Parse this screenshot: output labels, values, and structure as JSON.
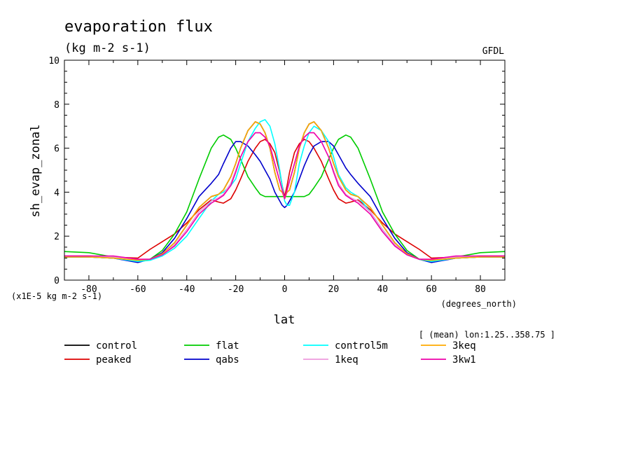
{
  "chart_data": {
    "type": "line",
    "title": "evaporation flux",
    "subtitle": "(kg m-2 s-1)",
    "source_label": "GFDL",
    "xlabel": "lat",
    "xunits": "(degrees_north)",
    "ylabel": "sh_evap_zonal",
    "yscale_note": "(x1E-5 kg m-2 s-1)",
    "averaging_note": "[ (mean) lon:1.25..358.75 ]",
    "xlim": [
      -90,
      90
    ],
    "ylim": [
      0,
      10
    ],
    "xticks": [
      -80,
      -60,
      -40,
      -20,
      0,
      20,
      40,
      60,
      80
    ],
    "yticks": [
      0,
      2,
      4,
      6,
      8,
      10
    ],
    "x": [
      -90,
      -80,
      -70,
      -60,
      -55,
      -50,
      -45,
      -40,
      -35,
      -30,
      -27,
      -25,
      -22,
      -20,
      -18,
      -15,
      -12,
      -10,
      -8,
      -6,
      -4,
      -2,
      -1,
      0,
      1,
      2,
      4,
      6,
      8,
      10,
      12,
      15,
      18,
      20,
      22,
      25,
      27,
      30,
      35,
      40,
      45,
      50,
      55,
      60,
      70,
      80,
      90
    ],
    "series": [
      {
        "name": "control",
        "color": "#000000",
        "values": [
          1.05,
          1.05,
          1.0,
          0.9,
          0.95,
          1.2,
          1.7,
          2.5,
          3.3,
          3.8,
          3.9,
          4.1,
          4.7,
          5.3,
          6.0,
          6.8,
          7.2,
          7.1,
          6.7,
          6.0,
          4.9,
          4.1,
          4.0,
          3.8,
          4.0,
          4.1,
          4.9,
          6.0,
          6.7,
          7.1,
          7.2,
          6.8,
          6.0,
          5.3,
          4.7,
          4.1,
          3.9,
          3.8,
          3.3,
          2.5,
          1.7,
          1.2,
          0.95,
          0.9,
          1.0,
          1.05,
          1.05
        ]
      },
      {
        "name": "peaked",
        "color": "#dd0000",
        "values": [
          1.1,
          1.1,
          1.05,
          1.0,
          1.4,
          1.75,
          2.1,
          2.6,
          3.2,
          3.65,
          3.55,
          3.5,
          3.7,
          4.1,
          4.6,
          5.4,
          6.0,
          6.3,
          6.4,
          6.2,
          5.8,
          4.9,
          4.3,
          3.8,
          4.3,
          4.9,
          5.8,
          6.2,
          6.4,
          6.3,
          6.0,
          5.4,
          4.6,
          4.1,
          3.7,
          3.5,
          3.55,
          3.65,
          3.2,
          2.6,
          2.1,
          1.75,
          1.4,
          1.0,
          1.05,
          1.1,
          1.1
        ]
      },
      {
        "name": "flat",
        "color": "#00cc00",
        "values": [
          1.3,
          1.25,
          1.05,
          0.85,
          0.95,
          1.35,
          2.1,
          3.1,
          4.6,
          6.0,
          6.5,
          6.6,
          6.4,
          6.0,
          5.5,
          4.7,
          4.2,
          3.9,
          3.8,
          3.8,
          3.8,
          3.8,
          3.8,
          3.8,
          3.8,
          3.8,
          3.8,
          3.8,
          3.8,
          3.9,
          4.2,
          4.7,
          5.5,
          6.0,
          6.4,
          6.6,
          6.5,
          6.0,
          4.6,
          3.1,
          2.1,
          1.35,
          0.95,
          0.85,
          1.05,
          1.25,
          1.3
        ]
      },
      {
        "name": "qabs",
        "color": "#0000cc",
        "values": [
          1.05,
          1.05,
          1.0,
          0.8,
          0.95,
          1.25,
          1.9,
          2.8,
          3.8,
          4.4,
          4.8,
          5.3,
          6.0,
          6.3,
          6.3,
          6.1,
          5.7,
          5.4,
          5.0,
          4.6,
          4.0,
          3.6,
          3.4,
          3.3,
          3.4,
          3.6,
          4.0,
          4.6,
          5.2,
          5.7,
          6.1,
          6.3,
          6.3,
          6.1,
          5.7,
          5.1,
          4.8,
          4.4,
          3.8,
          2.8,
          1.9,
          1.25,
          0.95,
          0.8,
          1.0,
          1.05,
          1.05
        ]
      },
      {
        "name": "control5m",
        "color": "#00ffff",
        "values": [
          1.05,
          1.05,
          1.0,
          0.85,
          0.9,
          1.1,
          1.45,
          2.0,
          2.8,
          3.6,
          3.9,
          4.0,
          4.3,
          4.6,
          5.3,
          6.3,
          6.9,
          7.2,
          7.3,
          7.0,
          6.2,
          5.0,
          4.3,
          3.6,
          3.4,
          3.4,
          4.0,
          5.3,
          6.1,
          6.7,
          7.0,
          6.8,
          6.3,
          5.6,
          4.8,
          4.2,
          4.0,
          3.8,
          3.1,
          2.3,
          1.6,
          1.15,
          0.95,
          0.85,
          1.0,
          1.05,
          1.05
        ]
      },
      {
        "name": "1keq",
        "color": "#ee99dd",
        "values": [
          1.1,
          1.1,
          1.05,
          0.95,
          0.95,
          1.2,
          1.6,
          2.3,
          3.1,
          3.6,
          3.75,
          3.9,
          4.4,
          5.0,
          5.6,
          6.3,
          6.7,
          6.7,
          6.5,
          6.1,
          5.3,
          4.5,
          4.1,
          3.7,
          4.1,
          4.5,
          5.3,
          6.1,
          6.5,
          6.7,
          6.7,
          6.3,
          5.6,
          5.0,
          4.4,
          3.9,
          3.75,
          3.6,
          3.1,
          2.3,
          1.6,
          1.2,
          0.95,
          0.95,
          1.05,
          1.1,
          1.1
        ]
      },
      {
        "name": "3keq",
        "color": "#ffaa00",
        "values": [
          1.05,
          1.05,
          1.0,
          0.9,
          0.95,
          1.2,
          1.7,
          2.5,
          3.3,
          3.8,
          3.9,
          4.1,
          4.7,
          5.3,
          6.0,
          6.8,
          7.2,
          7.1,
          6.7,
          6.0,
          4.9,
          4.1,
          4.0,
          3.7,
          4.0,
          4.1,
          4.9,
          6.0,
          6.7,
          7.1,
          7.2,
          6.8,
          6.0,
          5.3,
          4.7,
          4.1,
          3.9,
          3.8,
          3.3,
          2.5,
          1.7,
          1.2,
          0.95,
          0.9,
          1.0,
          1.05,
          1.05
        ]
      },
      {
        "name": "3kw1",
        "color": "#ee00aa",
        "values": [
          1.1,
          1.1,
          1.1,
          0.95,
          0.95,
          1.15,
          1.55,
          2.2,
          3.0,
          3.5,
          3.7,
          3.85,
          4.3,
          4.9,
          5.6,
          6.3,
          6.7,
          6.7,
          6.5,
          6.1,
          5.3,
          4.5,
          4.1,
          3.7,
          4.1,
          4.5,
          5.3,
          6.1,
          6.5,
          6.7,
          6.7,
          6.3,
          5.6,
          4.9,
          4.3,
          3.85,
          3.7,
          3.5,
          3.0,
          2.2,
          1.55,
          1.15,
          0.95,
          0.95,
          1.1,
          1.1,
          1.1
        ]
      }
    ]
  }
}
